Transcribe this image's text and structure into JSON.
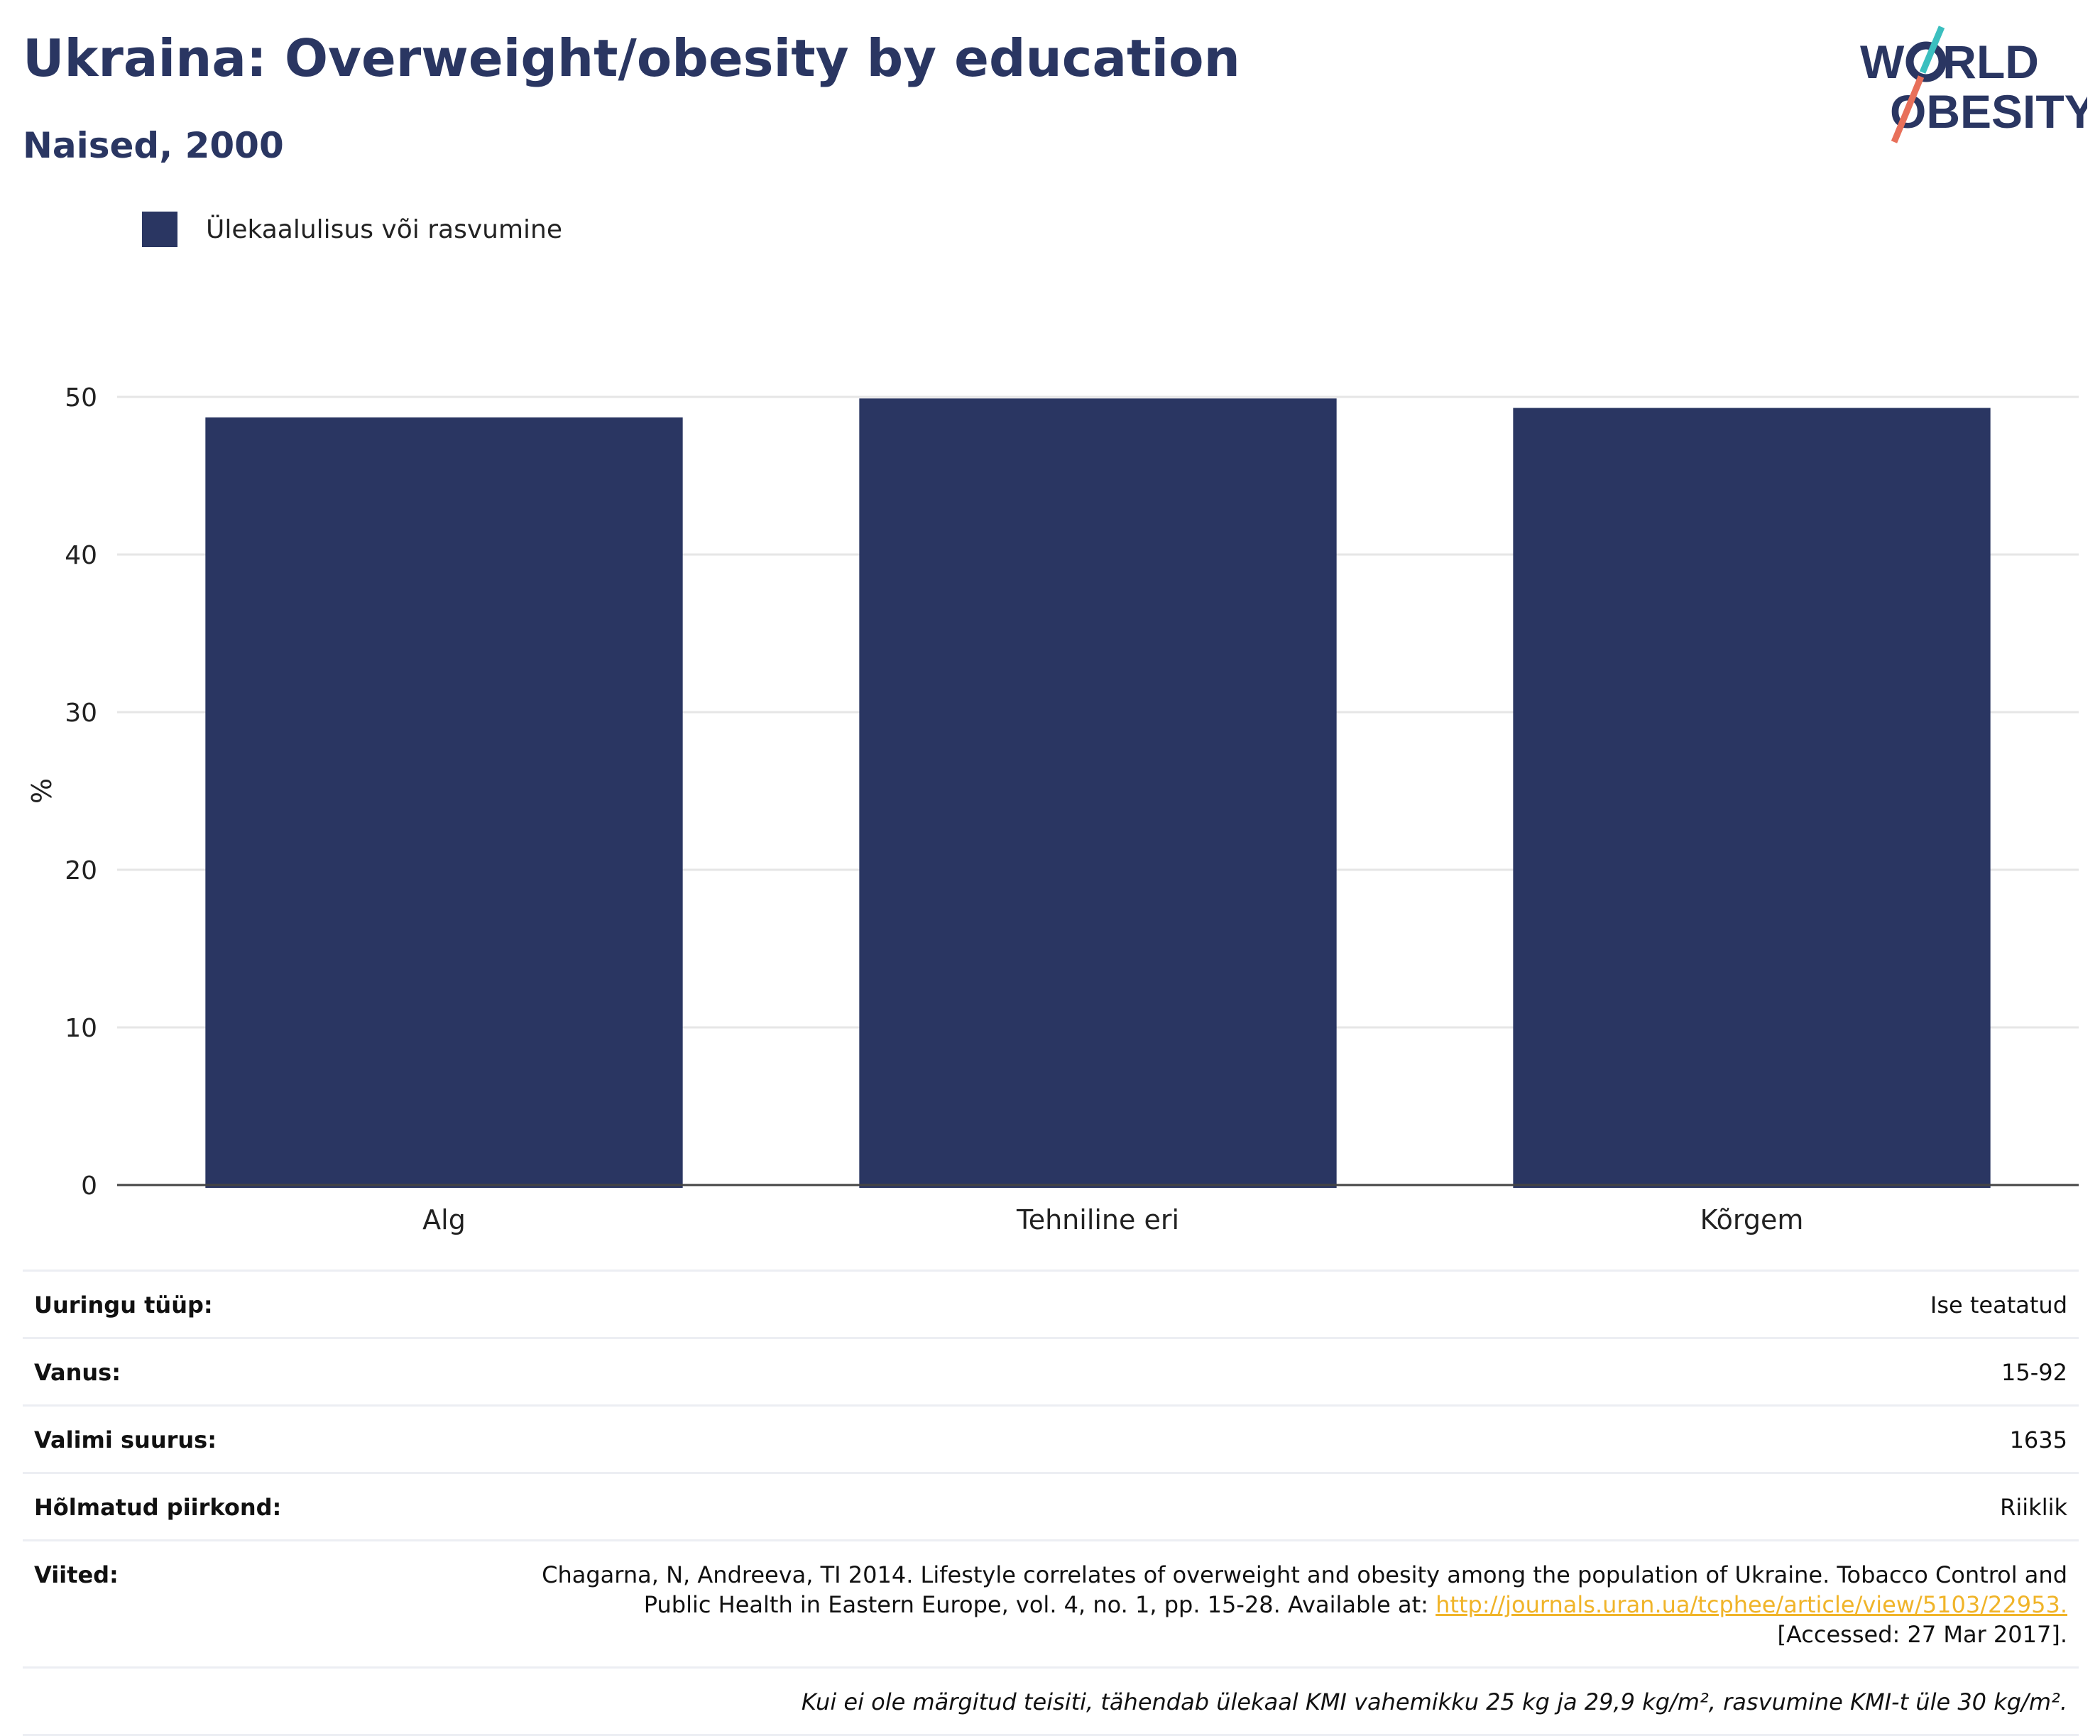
{
  "title": "Ukraina: Overweight/obesity by education",
  "subtitle": "Naised, 2000",
  "logo": {
    "line1": "W",
    "line1b": "RLD",
    "line2": "OBESITY",
    "accent_colors": [
      "#3bbfbf",
      "#e8705a"
    ]
  },
  "legend": {
    "label": "Ülekaalulisus või rasvumine",
    "color": "#2a3662"
  },
  "chart_data": {
    "type": "bar",
    "categories": [
      "Alg",
      "Tehniline eri",
      "Kõrgem"
    ],
    "series": [
      {
        "name": "Ülekaalulisus või rasvumine",
        "values": [
          48.7,
          49.9,
          49.3
        ],
        "color": "#2a3662"
      }
    ],
    "ylabel": "%",
    "ylim": [
      0,
      50
    ],
    "yticks": [
      0,
      10,
      20,
      30,
      40,
      50
    ],
    "grid": true,
    "legend_position": "top-left"
  },
  "meta": {
    "survey_type_label": "Uuringu tüüp:",
    "survey_type_value": "Ise teatatud",
    "age_label": "Vanus:",
    "age_value": "15-92",
    "sample_label": "Valimi suurus:",
    "sample_value": "1635",
    "region_label": "Hõlmatud piirkond:",
    "region_value": "Riiklik",
    "refs_label": "Viited:",
    "refs_text_before": "Chagarna, N, Andreeva, TI 2014. Lifestyle correlates of overweight and obesity among the population of Ukraine. Tobacco Control and Public Health in Eastern Europe, vol. 4, no. 1, pp. 15-28. Available at: ",
    "refs_link": "http://journals.uran.ua/tcphee/article/view/5103/22953.",
    "refs_text_after": " [Accessed: 27 Mar 2017].",
    "note": "Kui ei ole märgitud teisiti, tähendab ülekaal KMI vahemikku 25 kg ja 29,9 kg/m², rasvumine KMI-t üle 30 kg/m²."
  }
}
